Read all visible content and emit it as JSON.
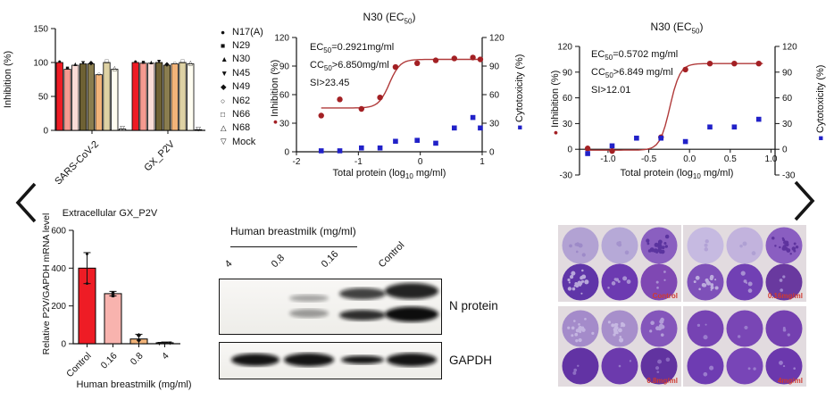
{
  "chart_data": [
    {
      "id": "panel-a-neutralization",
      "type": "bar",
      "ylabel": "Inhibition (%)",
      "ylim": [
        0,
        150
      ],
      "yticks": [
        0,
        50,
        100,
        150
      ],
      "groups": [
        "SARS-CoV-2",
        "GX_P2V"
      ],
      "series": [
        {
          "name": "N17(A)",
          "marker": "●",
          "color": "#ee1c25",
          "values": [
            100,
            100
          ]
        },
        {
          "name": "N29",
          "marker": "■",
          "color": "#f59a90",
          "values": [
            90,
            99
          ]
        },
        {
          "name": "N30",
          "marker": "▲",
          "color": "#fadcd7",
          "values": [
            96,
            99
          ]
        },
        {
          "name": "N45",
          "marker": "▼",
          "color": "#6e6134",
          "values": [
            98,
            100
          ]
        },
        {
          "name": "N49",
          "marker": "◆",
          "color": "#8a7d4f",
          "values": [
            98,
            96
          ]
        },
        {
          "name": "N62",
          "marker": "○",
          "color": "#f2b379",
          "values": [
            82,
            98
          ]
        },
        {
          "name": "N66",
          "marker": "□",
          "color": "#ded2a4",
          "values": [
            100,
            100
          ]
        },
        {
          "name": "N68",
          "marker": "△",
          "color": "#fffdf0",
          "values": [
            90,
            98
          ]
        },
        {
          "name": "Mock",
          "marker": "▽",
          "color": "#ffffff",
          "values": [
            2,
            1
          ]
        }
      ]
    },
    {
      "id": "panel-b-ec50-sars2",
      "type": "scatter",
      "title_pre": "N30 (EC",
      "title_sub": "50",
      "title_post": ")",
      "annotations": [
        {
          "pre": "EC",
          "sub": "50",
          "post": "=0.2921mg/ml"
        },
        {
          "pre": "CC",
          "sub": "50",
          "post": ">6.850mg/ml"
        },
        {
          "pre": "SI>23.45",
          "sub": "",
          "post": ""
        }
      ],
      "xlabel_pre": "Total protein (log",
      "xlabel_sub": "10",
      "xlabel_post": " mg/ml)",
      "ylabel_left": "Inhibition (%)",
      "ylabel_right": "Cytotoxicity (%)",
      "xlim": [
        -2,
        1
      ],
      "xticks": [
        {
          "v": -2,
          "t": "-2"
        },
        {
          "v": -1,
          "t": "-1"
        },
        {
          "v": 0,
          "t": "0"
        },
        {
          "v": 1,
          "t": "1"
        }
      ],
      "ylim": [
        0,
        120
      ],
      "yticks": [
        0,
        30,
        60,
        90,
        120
      ],
      "series": [
        {
          "name": "Inhibition",
          "glyph": "●",
          "color": "#a32024",
          "points": [
            [
              -1.6,
              38
            ],
            [
              -1.3,
              55
            ],
            [
              -0.95,
              45
            ],
            [
              -0.65,
              57
            ],
            [
              -0.4,
              89
            ],
            [
              -0.05,
              93
            ],
            [
              0.25,
              96
            ],
            [
              0.55,
              98
            ],
            [
              0.85,
              99
            ],
            [
              0.97,
              97
            ]
          ]
        },
        {
          "name": "Cytotoxicity",
          "glyph": "■",
          "color": "#2121c8",
          "points": [
            [
              -1.6,
              1
            ],
            [
              -1.3,
              1
            ],
            [
              -0.95,
              4
            ],
            [
              -0.65,
              4
            ],
            [
              -0.4,
              11
            ],
            [
              -0.05,
              12
            ],
            [
              0.25,
              9
            ],
            [
              0.55,
              25
            ],
            [
              0.85,
              36
            ],
            [
              0.97,
              25
            ]
          ]
        }
      ],
      "curve": {
        "color": "#b03a3a",
        "bottom": 46,
        "top": 97,
        "logec50": -0.5,
        "slope": 5,
        "xstart": -1.6,
        "xend": 0.97
      }
    },
    {
      "id": "panel-c-ec50-gxp2v",
      "type": "scatter",
      "title_pre": "N30 (EC",
      "title_sub": "50",
      "title_post": ")",
      "annotations": [
        {
          "pre": "EC",
          "sub": "50",
          "post": "=0.5702 mg/ml"
        },
        {
          "pre": "CC",
          "sub": "50",
          "post": ">6.849 mg/ml"
        },
        {
          "pre": "SI>12.01",
          "sub": "",
          "post": ""
        }
      ],
      "xlabel_pre": "Total protein (log",
      "xlabel_sub": "10",
      "xlabel_post": " mg/ml)",
      "ylabel_left": "Inhibition (%)",
      "ylabel_right": "Cytotoxicity (%)",
      "xlim": [
        -1.35,
        1.05
      ],
      "xticks": [
        {
          "v": -1,
          "t": "-1.0"
        },
        {
          "v": -0.5,
          "t": "-0.5"
        },
        {
          "v": 0,
          "t": "0.0"
        },
        {
          "v": 0.5,
          "t": "0.5"
        },
        {
          "v": 1,
          "t": "1.0"
        }
      ],
      "ylim": [
        -30,
        120
      ],
      "yticks": [
        -30,
        0,
        30,
        60,
        90,
        120
      ],
      "series": [
        {
          "name": "Inhibition",
          "glyph": "●",
          "color": "#a32024",
          "points": [
            [
              -1.25,
              1
            ],
            [
              -0.95,
              -2
            ],
            [
              -0.35,
              14
            ],
            [
              -0.05,
              93
            ],
            [
              0.25,
              100
            ],
            [
              0.55,
              100
            ],
            [
              0.85,
              100
            ]
          ]
        },
        {
          "name": "Cytotoxicity",
          "glyph": "■",
          "color": "#2121c8",
          "points": [
            [
              -1.25,
              -5
            ],
            [
              -0.95,
              4
            ],
            [
              -0.65,
              13
            ],
            [
              -0.35,
              13
            ],
            [
              -0.05,
              9
            ],
            [
              0.25,
              26
            ],
            [
              0.55,
              26
            ],
            [
              0.85,
              35
            ]
          ]
        }
      ],
      "curve": {
        "color": "#b03a3a",
        "bottom": -1,
        "top": 100,
        "logec50": -0.24,
        "slope": 7,
        "xstart": -1.28,
        "xend": 0.9
      }
    },
    {
      "id": "panel-d-mrna",
      "type": "bar",
      "title": "Extracellular GX_P2V",
      "ylabel": "Relative P2V/GAPDH mRNA level",
      "xlabel": "Human breastmilk (mg/ml)",
      "ylim": [
        0,
        600
      ],
      "yticks": [
        0,
        200,
        400,
        600
      ],
      "categories": [
        "Control",
        "0.16",
        "0.8",
        "4"
      ],
      "values": [
        400,
        265,
        25,
        5
      ],
      "errors": [
        82,
        12,
        25,
        4
      ],
      "colors": [
        "#ee1c25",
        "#f8b3ae",
        "#f2b379",
        "#fffdf0"
      ],
      "point_markers": [
        "●",
        "■",
        "◆",
        "▼"
      ],
      "points": [
        [
          478,
          322
        ],
        [
          256,
          268
        ],
        [
          20,
          48
        ],
        [
          2,
          3,
          5
        ]
      ],
      "spread": [
        false,
        false,
        false,
        true
      ]
    }
  ],
  "western_blot": {
    "header": "Human breastmilk (mg/ml)",
    "lanes": [
      "4",
      "0.8",
      "0.16",
      "Control"
    ],
    "blots": [
      {
        "label": "N protein",
        "band_intensities": [
          0,
          0.3,
          0.8,
          1
        ]
      },
      {
        "label": "GAPDH",
        "band_intensities": [
          1,
          1,
          0.85,
          1
        ]
      }
    ]
  },
  "plaque_assay": {
    "label_color": "#d03a30",
    "images": [
      {
        "label": "Control",
        "wells": [
          {
            "fill": "#b2a2d3",
            "dots": 6,
            "dot_color": "#9d8ac8"
          },
          {
            "fill": "#b6a9d7",
            "dots": 4,
            "dot_color": "#a493cd"
          },
          {
            "fill": "#8a5fc0",
            "dots": 22,
            "dot_color": "#5b349f"
          },
          {
            "fill": "#5f35a8",
            "dots": 20,
            "dot_color": "#b7a6da"
          },
          {
            "fill": "#6c3ab1",
            "dots": 7,
            "dot_color": "#a78fd2"
          },
          {
            "fill": "#7f48b3",
            "dots": 4,
            "dot_color": "#a98fd2"
          }
        ]
      },
      {
        "label": "0.16mg/ml",
        "wells": [
          {
            "fill": "#c6bae1",
            "dots": 3,
            "dot_color": "#b2a2d6"
          },
          {
            "fill": "#c2b3dd",
            "dots": 3,
            "dot_color": "#afa0d3"
          },
          {
            "fill": "#8a5ec1",
            "dots": 18,
            "dot_color": "#5e339e"
          },
          {
            "fill": "#7e50b9",
            "dots": 16,
            "dot_color": "#bcabdd"
          },
          {
            "fill": "#7140b4",
            "dots": 5,
            "dot_color": "#a78fd2"
          },
          {
            "fill": "#69399f",
            "dots": 3,
            "dot_color": "#9f86cc"
          }
        ]
      },
      {
        "label": "0.8mg/ml",
        "wells": [
          {
            "fill": "#a48bca",
            "dots": 18,
            "dot_color": "#c3b4e0"
          },
          {
            "fill": "#a78fcb",
            "dots": 16,
            "dot_color": "#c6b8e2"
          },
          {
            "fill": "#8456bb",
            "dots": 10,
            "dot_color": "#b29cd8"
          },
          {
            "fill": "#6233a4",
            "dots": 3,
            "dot_color": "#8e6ec4"
          },
          {
            "fill": "#6c3aad",
            "dots": 2,
            "dot_color": "#9377c8"
          },
          {
            "fill": "#6133a0",
            "dots": 4,
            "dot_color": "#8a67bf"
          }
        ]
      },
      {
        "label": "4mg/ml",
        "wells": [
          {
            "fill": "#7643b3",
            "dots": 3,
            "dot_color": "#9a7bcd"
          },
          {
            "fill": "#7946b5",
            "dots": 2,
            "dot_color": "#9a7bcd"
          },
          {
            "fill": "#7440b0",
            "dots": 3,
            "dot_color": "#9a7bcd"
          },
          {
            "fill": "#6e3cb2",
            "dots": 2,
            "dot_color": "#9a7bcd"
          },
          {
            "fill": "#7845b7",
            "dots": 2,
            "dot_color": "#9a7bcd"
          },
          {
            "fill": "#6b38ad",
            "dots": 3,
            "dot_color": "#9a7bcd"
          }
        ]
      }
    ]
  }
}
